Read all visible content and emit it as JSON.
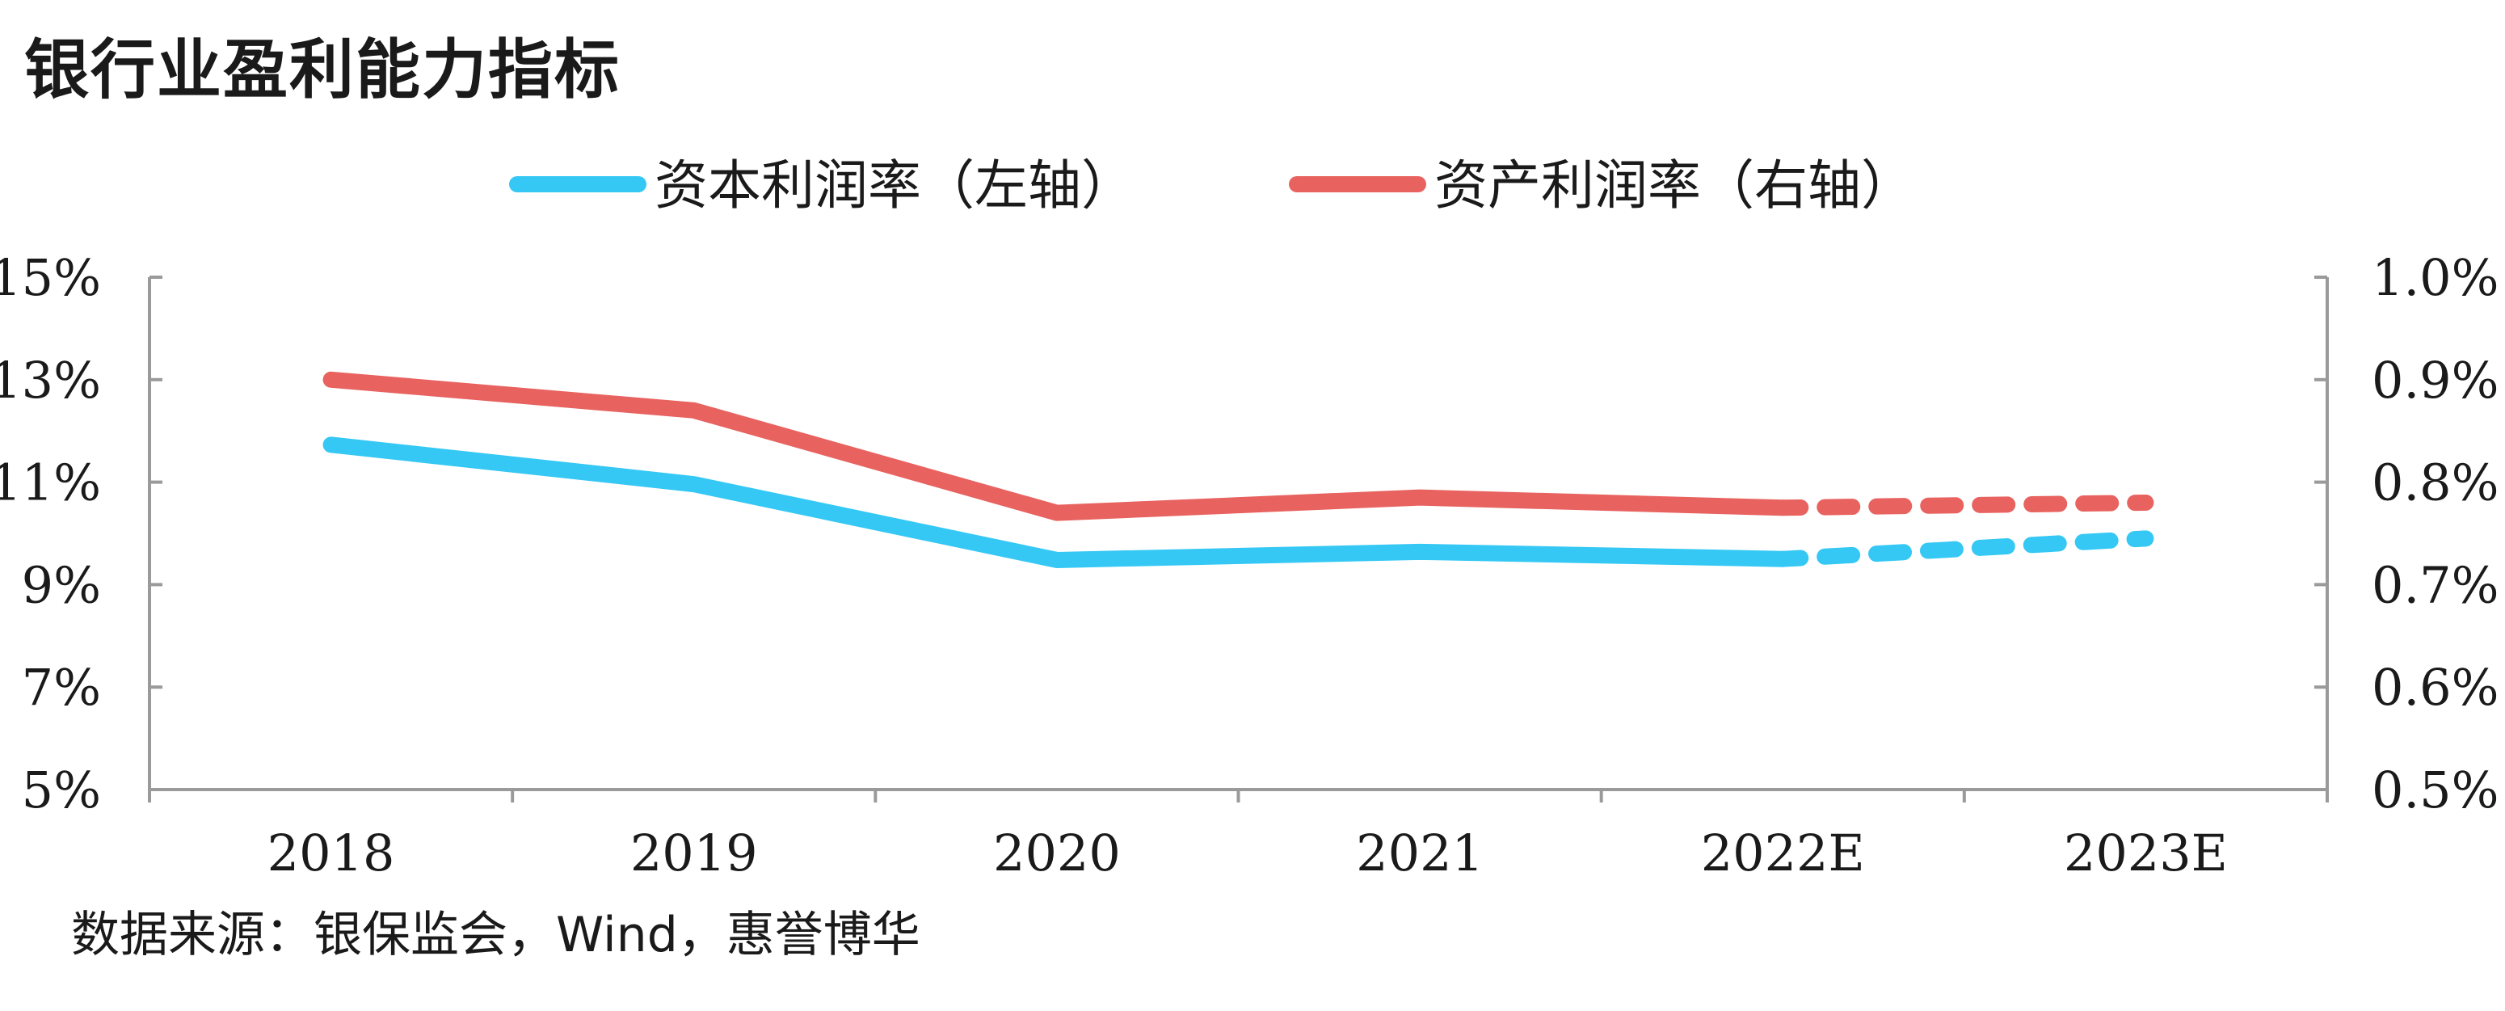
{
  "title": "银行业盈利能力指标",
  "source": "数据来源：银保监会，Wind，惠誉博华",
  "chart_data": {
    "type": "line",
    "categories": [
      "2018",
      "2019",
      "2020",
      "2021",
      "2022E",
      "2023E"
    ],
    "forecast_from_index": 4,
    "y_left": {
      "min": 5,
      "max": 15,
      "ticks": [
        5,
        7,
        9,
        11,
        13,
        15
      ],
      "tick_labels": [
        "5%",
        "7%",
        "9%",
        "11%",
        "13%",
        "15%"
      ]
    },
    "y_right": {
      "min": 0.5,
      "max": 1.0,
      "ticks": [
        0.5,
        0.6,
        0.7,
        0.8,
        0.9,
        1.0
      ],
      "tick_labels": [
        "0.5%",
        "0.6%",
        "0.7%",
        "0.8%",
        "0.9%",
        "1.0%"
      ]
    },
    "series": [
      {
        "name": "资本利润率（左轴）",
        "axis": "left",
        "color": "#35c8f4",
        "values": [
          11.73,
          10.96,
          9.48,
          9.64,
          9.5,
          9.9
        ]
      },
      {
        "name": "资产利润率（右轴）",
        "axis": "right",
        "color": "#e8625f",
        "values": [
          0.9,
          0.87,
          0.77,
          0.785,
          0.775,
          0.78
        ]
      }
    ],
    "legend_position": "top-center",
    "grid": false
  }
}
